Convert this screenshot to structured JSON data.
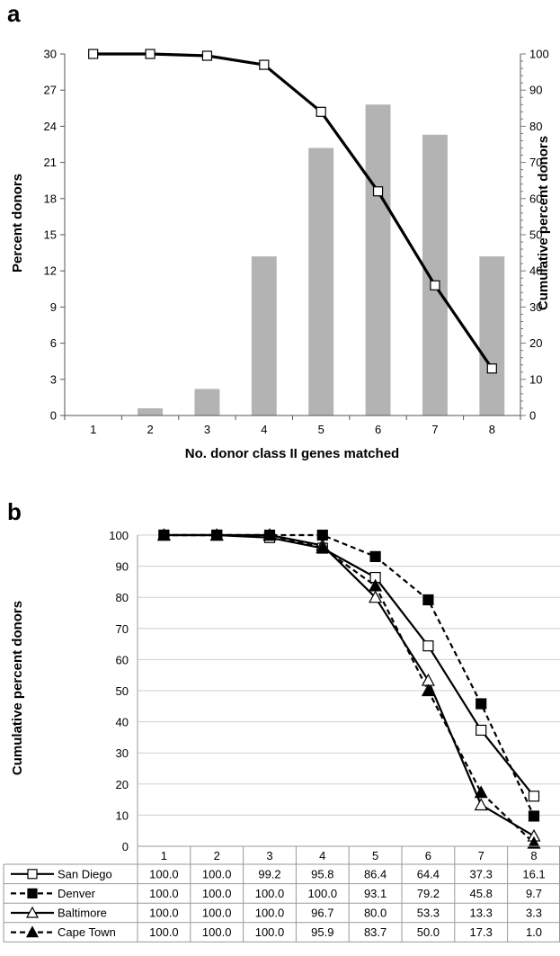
{
  "chart_data": [
    {
      "panel_label": "a",
      "type": "bar",
      "xlabel": "No. donor class II genes matched",
      "ylabel": "Percent donors",
      "y2label": "Cumulative percent donors",
      "categories": [
        "1",
        "2",
        "3",
        "4",
        "5",
        "6",
        "7",
        "8"
      ],
      "ylim": [
        0,
        30
      ],
      "y_ticks": [
        0,
        3,
        6,
        9,
        12,
        15,
        18,
        21,
        24,
        27,
        30
      ],
      "y2lim": [
        0,
        100
      ],
      "y2_ticks": [
        0,
        10,
        20,
        30,
        40,
        50,
        60,
        70,
        80,
        90,
        100
      ],
      "bar_color": "#b3b3b3",
      "series": [
        {
          "kind": "bar",
          "axis": "left",
          "values": [
            0,
            0.6,
            2.2,
            13.2,
            22.2,
            25.8,
            23.3,
            13.2
          ]
        },
        {
          "kind": "line",
          "axis": "right",
          "values": [
            100,
            100,
            99.5,
            97,
            84,
            62,
            36,
            13
          ]
        }
      ],
      "grid": false
    },
    {
      "panel_label": "b",
      "type": "line",
      "ylabel": "Cumulative percent donors",
      "categories": [
        "1",
        "2",
        "3",
        "4",
        "5",
        "6",
        "7",
        "8"
      ],
      "ylim": [
        0,
        100
      ],
      "y_ticks": [
        0,
        10,
        20,
        30,
        40,
        50,
        60,
        70,
        80,
        90,
        100
      ],
      "grid": true,
      "legend": "table-below",
      "series": [
        {
          "name": "San Diego",
          "style": "solid",
          "marker": "open-square",
          "values": [
            100.0,
            100.0,
            99.2,
            95.8,
            86.4,
            64.4,
            37.3,
            16.1
          ],
          "labels": [
            "100.0",
            "100.0",
            "99.2",
            "95.8",
            "86.4",
            "64.4",
            "37.3",
            "16.1"
          ]
        },
        {
          "name": "Denver",
          "style": "dashed",
          "marker": "filled-square",
          "values": [
            100.0,
            100.0,
            100.0,
            100.0,
            93.1,
            79.2,
            45.8,
            9.7
          ],
          "labels": [
            "100.0",
            "100.0",
            "100.0",
            "100.0",
            "93.1",
            "79.2",
            "45.8",
            "9.7"
          ]
        },
        {
          "name": "Baltimore",
          "style": "solid",
          "marker": "open-triangle",
          "values": [
            100.0,
            100.0,
            100.0,
            96.7,
            80.0,
            53.3,
            13.3,
            3.3
          ],
          "labels": [
            "100.0",
            "100.0",
            "100.0",
            "96.7",
            "80.0",
            "53.3",
            "13.3",
            "3.3"
          ]
        },
        {
          "name": "Cape Town",
          "style": "dashed",
          "marker": "filled-triangle",
          "values": [
            100.0,
            100.0,
            100.0,
            95.9,
            83.7,
            50.0,
            17.3,
            1.0
          ],
          "labels": [
            "100.0",
            "100.0",
            "100.0",
            "95.9",
            "83.7",
            "50.0",
            "17.3",
            "1.0"
          ]
        }
      ]
    }
  ]
}
